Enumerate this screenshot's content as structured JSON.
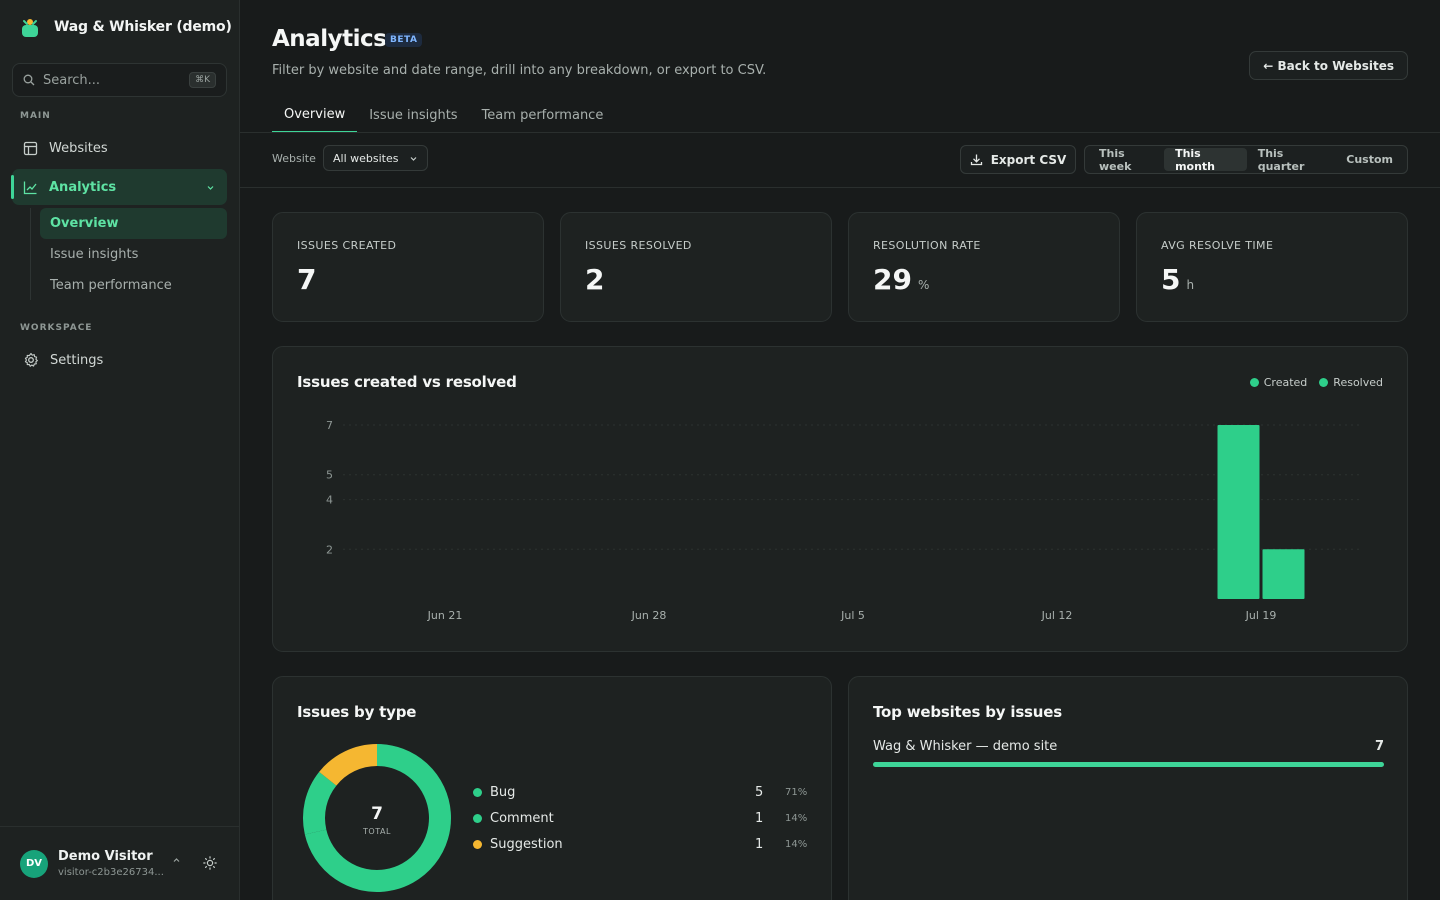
{
  "app": {
    "name": "Wag & Whisker (demo)"
  },
  "search": {
    "placeholder": "Search...",
    "shortcut": "⌘K"
  },
  "sidebar": {
    "main_label": "MAIN",
    "workspace_label": "WORKSPACE",
    "websites": "Websites",
    "analytics": "Analytics",
    "sub": [
      "Overview",
      "Issue insights",
      "Team performance"
    ],
    "settings": "Settings"
  },
  "user": {
    "initials": "DV",
    "name": "Demo Visitor",
    "id": "visitor-c2b3e26734..."
  },
  "page": {
    "title": "Analytics",
    "badge": "BETA",
    "subtitle": "Filter by website and date range, drill into any breakdown, or export to CSV.",
    "back": "← Back to Websites",
    "tabs": [
      "Overview",
      "Issue insights",
      "Team performance"
    ]
  },
  "filters": {
    "website_label": "Website",
    "website_value": "All websites",
    "export": "Export CSV",
    "ranges": [
      "This week",
      "This month",
      "This quarter",
      "Custom"
    ],
    "active_range": "This month"
  },
  "stats": [
    {
      "label": "ISSUES CREATED",
      "value": "7",
      "unit": ""
    },
    {
      "label": "ISSUES RESOLVED",
      "value": "2",
      "unit": ""
    },
    {
      "label": "RESOLUTION RATE",
      "value": "29",
      "unit": "%"
    },
    {
      "label": "AVG RESOLVE TIME",
      "value": "5",
      "unit": "h"
    }
  ],
  "colors": {
    "accent": "#3ed598",
    "bar": "#2ecf8a",
    "suggestion": "#f5b731",
    "background": "#181b1b",
    "card": "#1e2221"
  },
  "chart_data": {
    "type": "bar",
    "title": "Issues created vs resolved",
    "categories": [
      "Jun 21",
      "Jun 28",
      "Jul 5",
      "Jul 12",
      "Jul 19"
    ],
    "yticks": [
      2,
      4,
      5,
      7
    ],
    "ylim": [
      0,
      7
    ],
    "series": [
      {
        "name": "Created",
        "color": "#2ecf8a",
        "values": [
          0,
          0,
          0,
          0,
          7
        ]
      },
      {
        "name": "Resolved",
        "color": "#2ecf8a",
        "values": [
          0,
          0,
          0,
          0,
          2
        ]
      }
    ],
    "legend": "top-right",
    "grid": true
  },
  "types": {
    "title": "Issues by type",
    "total": "7",
    "total_label": "TOTAL",
    "items": [
      {
        "name": "Bug",
        "count": "5",
        "pct": "71%",
        "value": 5,
        "color": "#2ecf8a"
      },
      {
        "name": "Comment",
        "count": "1",
        "pct": "14%",
        "value": 1,
        "color": "#2ecf8a"
      },
      {
        "name": "Suggestion",
        "count": "1",
        "pct": "14%",
        "value": 1,
        "color": "#f5b731"
      }
    ]
  },
  "top_sites": {
    "title": "Top websites by issues",
    "items": [
      {
        "name": "Wag & Whisker — demo site",
        "count": "7",
        "fraction": 1.0
      }
    ]
  }
}
